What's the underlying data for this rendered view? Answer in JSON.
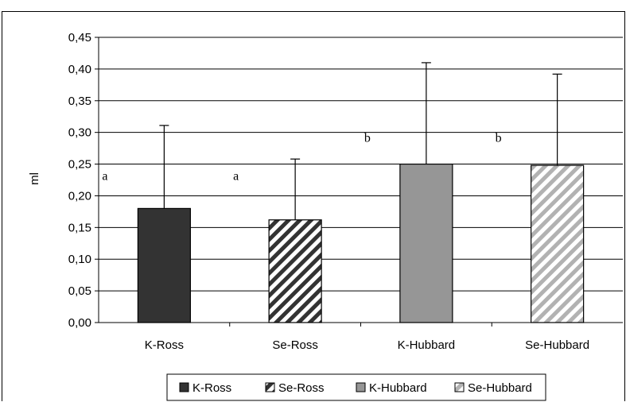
{
  "chart_data": {
    "type": "bar",
    "title": "",
    "xlabel": "",
    "ylabel": "ml",
    "ylim": [
      0,
      0.45
    ],
    "yticks": [
      "0,00",
      "0,05",
      "0,10",
      "0,15",
      "0,20",
      "0,25",
      "0,30",
      "0,35",
      "0,40",
      "0,45"
    ],
    "categories": [
      "K-Ross",
      "Se-Ross",
      "K-Hubbard",
      "Se-Hubbard"
    ],
    "values": [
      0.18,
      0.162,
      0.25,
      0.248
    ],
    "error_upper": [
      0.311,
      0.258,
      0.41,
      0.392
    ],
    "annotations": [
      "a",
      "a",
      "b",
      "b"
    ],
    "legend": [
      "K-Ross",
      "Se-Ross",
      "K-Hubbard",
      "Se-Hubbard"
    ],
    "legend_position": "bottom",
    "grid": true,
    "colors": {
      "k_ross": "#333333",
      "se_ross_stripe": "#333333",
      "k_hubbard": "#969696",
      "se_hubbard_stripe": "#b2b2b2"
    }
  }
}
